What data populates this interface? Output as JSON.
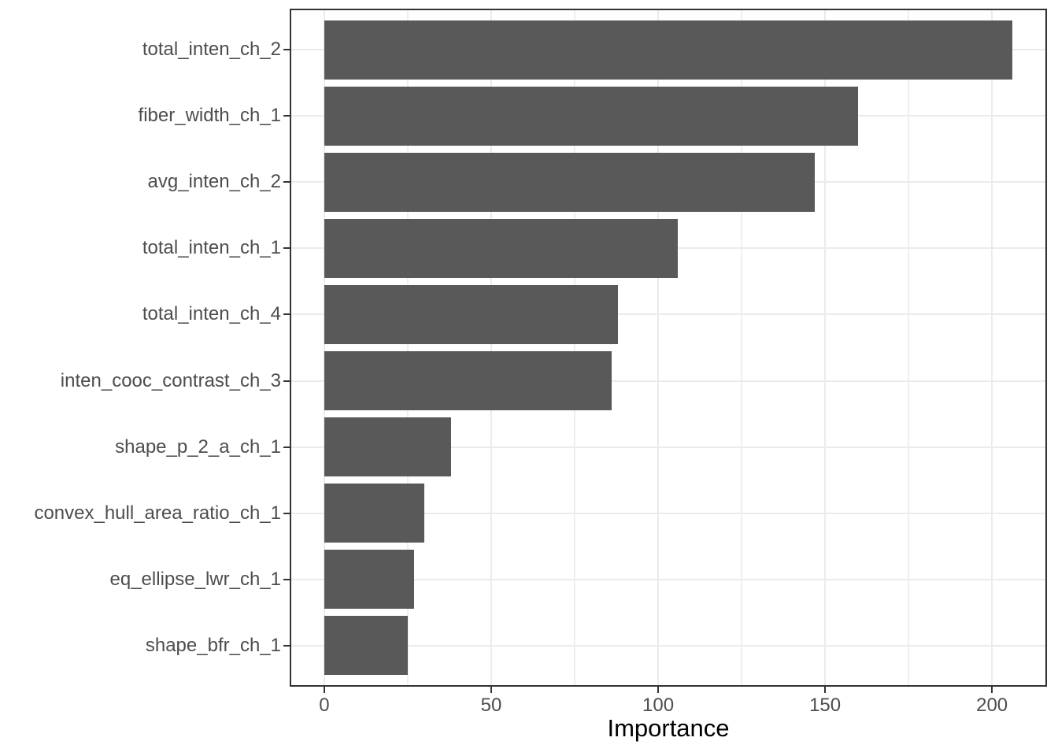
{
  "chart_data": {
    "type": "bar",
    "orientation": "horizontal",
    "title": "",
    "xlabel": "Importance",
    "ylabel": "",
    "categories": [
      "total_inten_ch_2",
      "fiber_width_ch_1",
      "avg_inten_ch_2",
      "total_inten_ch_1",
      "total_inten_ch_4",
      "inten_cooc_contrast_ch_3",
      "shape_p_2_a_ch_1",
      "convex_hull_area_ratio_ch_1",
      "eq_ellipse_lwr_ch_1",
      "shape_bfr_ch_1"
    ],
    "values": [
      206,
      160,
      147,
      106,
      88,
      86,
      38,
      30,
      27,
      25
    ],
    "xlim": [
      -9.9,
      216
    ],
    "x_major_ticks": [
      0,
      50,
      100,
      150,
      200
    ],
    "x_minor_ticks": [
      25,
      75,
      125,
      175
    ],
    "grid": true,
    "legend": false,
    "colors": {
      "bar_fill": "#595959",
      "grid_major": "#ebebeb",
      "grid_minor": "#efefef",
      "panel_border": "#333333",
      "tick_label": "#4d4d4d",
      "axis_title": "#000000",
      "background": "#ffffff"
    }
  }
}
